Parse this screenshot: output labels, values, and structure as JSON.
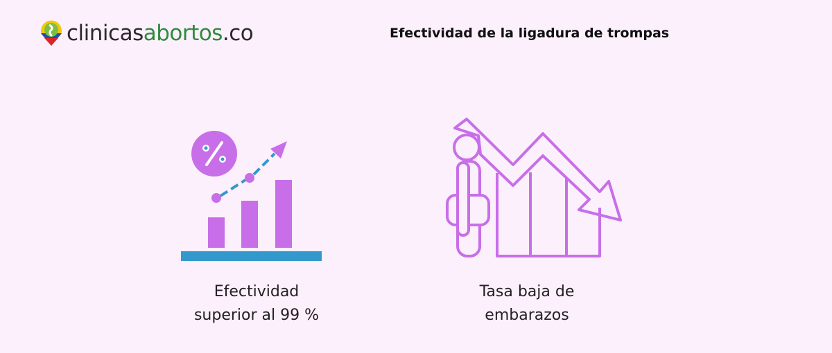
{
  "logo": {
    "part1": "clinicas",
    "part2": "abortos",
    "part3": ".co"
  },
  "title": "Efectividad de la ligadura de trompas",
  "items": [
    {
      "icon": "growth-chart-percent-icon",
      "line1": "Efectividad",
      "line2": "superior al 99 %"
    },
    {
      "icon": "declining-chart-person-icon",
      "line1": "Tasa baja de",
      "line2": "embarazos"
    }
  ],
  "colors": {
    "background": "#fcf0fc",
    "accent": "#c86ee8",
    "blue": "#3399cc",
    "green": "#2e8b3a"
  }
}
